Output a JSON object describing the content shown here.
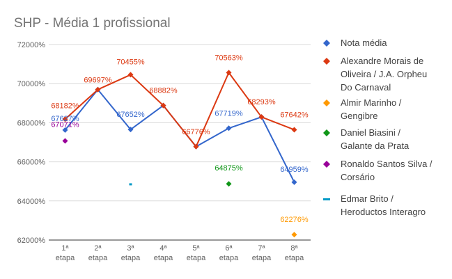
{
  "chart_data": {
    "type": "line",
    "title": "SHP - Média 1 profissional",
    "xlabel": "",
    "ylabel": "",
    "ylim": [
      620,
      720
    ],
    "yticks": [
      "72000%",
      "70000%",
      "68000%",
      "66000%",
      "64000%",
      "62000%"
    ],
    "ytick_values": [
      720,
      700,
      680,
      660,
      640,
      620
    ],
    "categories": [
      [
        "1ª",
        "etapa"
      ],
      [
        "2ª",
        "etapa"
      ],
      [
        "3ª",
        "etapa"
      ],
      [
        "4ª",
        "etapa"
      ],
      [
        "5ª",
        "etapa"
      ],
      [
        "6ª",
        "etapa"
      ],
      [
        "7ª",
        "etapa"
      ],
      [
        "8ª",
        "etapa"
      ]
    ],
    "grid": true,
    "legend_position": "right",
    "series": [
      {
        "name": "Nota média",
        "color": "#3366CC",
        "marker": "diamond",
        "values": [
          676.27,
          696.97,
          676.52,
          688.82,
          667.76,
          677.19,
          682.93,
          649.59
        ],
        "labels": [
          "67627%",
          null,
          "67652%",
          null,
          null,
          "67719%",
          null,
          "64959%"
        ]
      },
      {
        "name": "Alexandre Morais de Oliveira / J.A. Orpheu Do Carnaval",
        "legend_lines": [
          "Alexandre Morais de",
          "Oliveira / J.A. Orpheu",
          "Do Carnaval"
        ],
        "color": "#DC3912",
        "marker": "diamond",
        "values": [
          681.82,
          696.97,
          704.55,
          688.82,
          667.76,
          705.63,
          682.93,
          676.42
        ],
        "labels": [
          "68182%",
          "69697%",
          "70455%",
          "68882%",
          "66776%",
          "70563%",
          "68293%",
          "67642%"
        ]
      },
      {
        "name": "Almir Marinho / Gengibre",
        "legend_lines": [
          "Almir Marinho /",
          "Gengibre"
        ],
        "color": "#FF9900",
        "marker": "diamond",
        "values": [
          null,
          null,
          null,
          null,
          null,
          null,
          null,
          622.76
        ],
        "labels": [
          null,
          null,
          null,
          null,
          null,
          null,
          null,
          "62276%"
        ]
      },
      {
        "name": "Daniel Biasini / Galante da Prata",
        "legend_lines": [
          "Daniel Biasini /",
          "Galante da Prata"
        ],
        "color": "#109618",
        "marker": "diamond",
        "values": [
          null,
          null,
          null,
          null,
          null,
          648.75,
          null,
          null
        ],
        "labels": [
          null,
          null,
          null,
          null,
          null,
          "64875%",
          null,
          null
        ]
      },
      {
        "name": "Ronaldo Santos Silva / Corsário",
        "legend_lines": [
          "Ronaldo Santos Silva /",
          "Corsário"
        ],
        "color": "#990099",
        "marker": "diamond",
        "values": [
          670.71,
          null,
          null,
          null,
          null,
          null,
          null,
          null
        ],
        "labels": [
          "67071%",
          null,
          null,
          null,
          null,
          null,
          null,
          null
        ]
      },
      {
        "name": "Edmar Brito / Heroductos Interagro",
        "legend_lines": [
          "Edmar Brito /",
          "Heroductos Interagro"
        ],
        "color": "#0099C6",
        "marker": "dash",
        "values": [
          null,
          null,
          648.5,
          null,
          null,
          null,
          null,
          null
        ],
        "labels": [
          null,
          null,
          null,
          null,
          null,
          null,
          null,
          null
        ]
      }
    ]
  }
}
